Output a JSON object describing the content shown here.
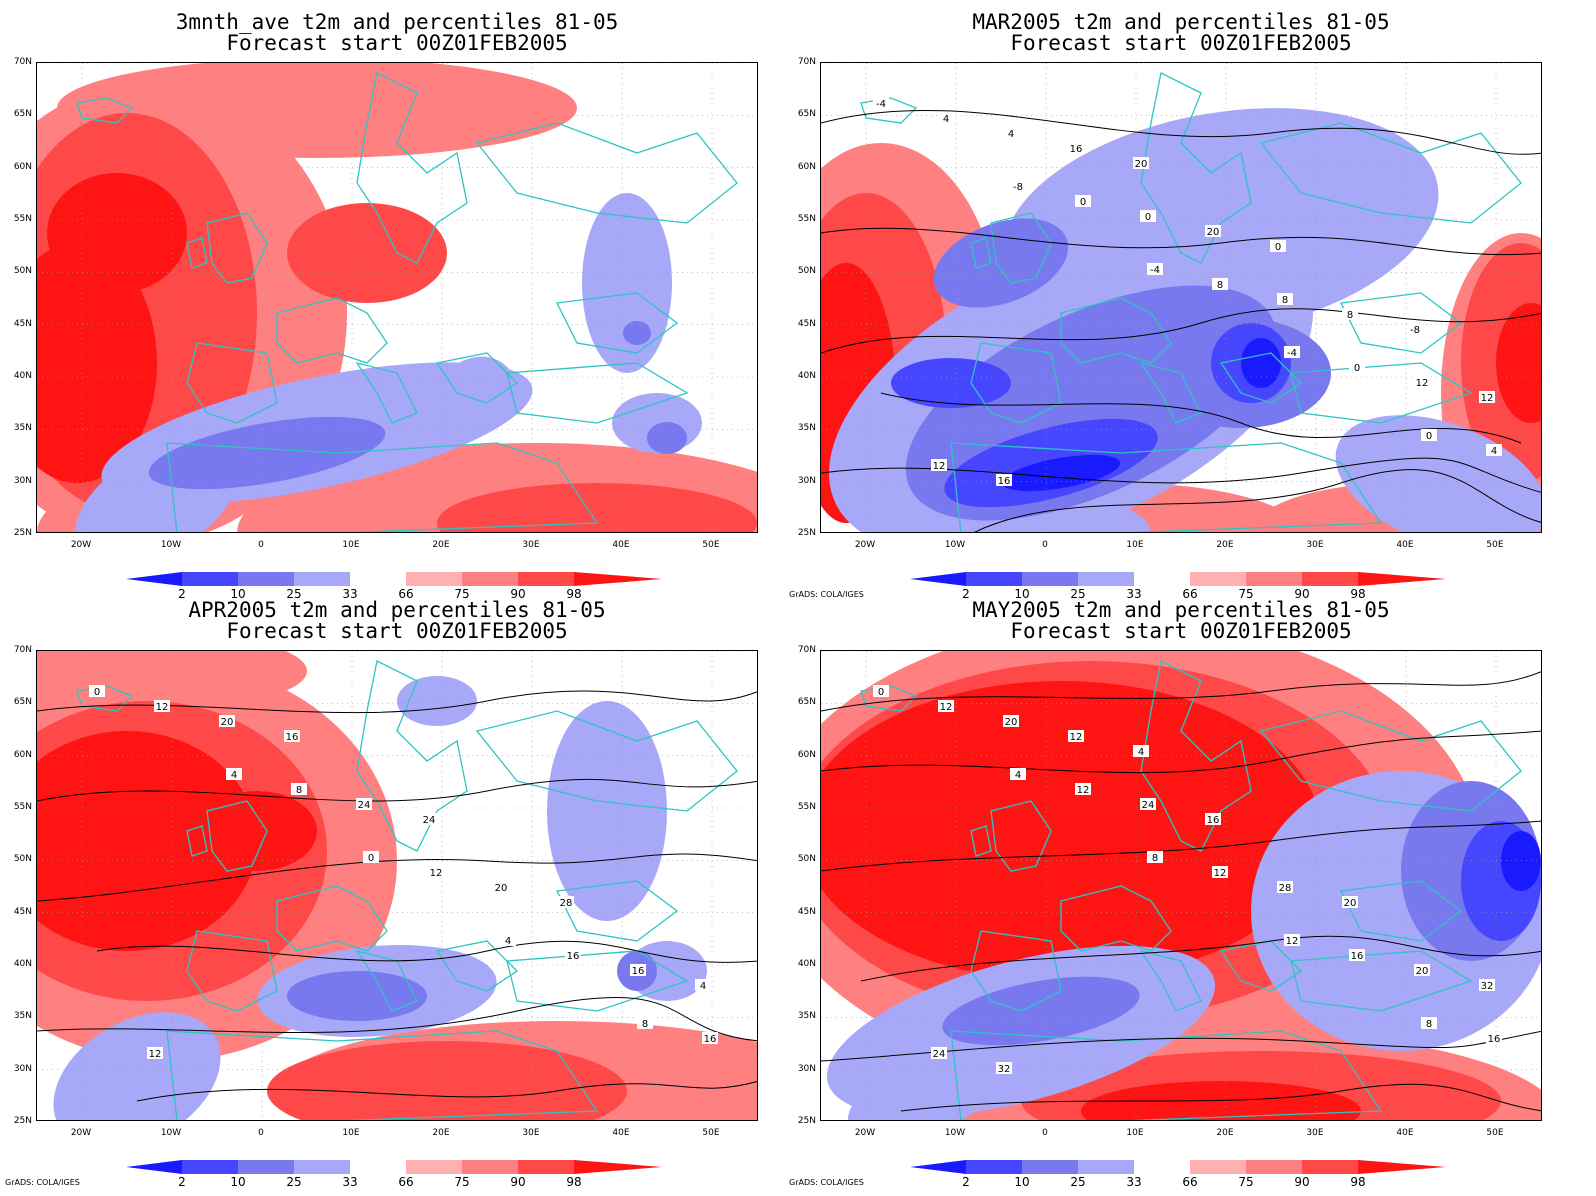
{
  "panels": [
    {
      "title": "3mnth_ave t2m and percentiles 81-05",
      "subtitle": "Forecast start 00Z01FEB2005",
      "credit": "",
      "has_contours": false,
      "contour_labels": []
    },
    {
      "title": "MAR2005 t2m and percentiles 81-05",
      "subtitle": "Forecast start 00Z01FEB2005",
      "credit": "GrADS: COLA/IGES",
      "has_contours": true,
      "contour_labels": [
        "-4",
        "-8",
        "-4",
        "-4",
        "0",
        "4",
        "0",
        "8",
        "0",
        "4",
        "4",
        "0",
        "8",
        "12",
        "12",
        "16",
        "20",
        "8",
        "12",
        "16",
        "20",
        "0",
        "-8"
      ]
    },
    {
      "title": "APR2005 t2m and percentiles 81-05",
      "subtitle": "Forecast start 00Z01FEB2005",
      "credit": "GrADS: COLA/IGES",
      "has_contours": true,
      "contour_labels": [
        "0",
        "4",
        "0",
        "4",
        "8",
        "12",
        "8",
        "12",
        "16",
        "16",
        "20",
        "24",
        "20",
        "16",
        "12",
        "16",
        "24",
        "28",
        "4"
      ]
    },
    {
      "title": "MAY2005 t2m and percentiles 81-05",
      "subtitle": "Forecast start 00Z01FEB2005",
      "credit": "GrADS: COLA/IGES",
      "has_contours": true,
      "contour_labels": [
        "0",
        "4",
        "8",
        "12",
        "8",
        "12",
        "12",
        "12",
        "16",
        "16",
        "20",
        "24",
        "28",
        "20",
        "24",
        "12",
        "16",
        "20",
        "32",
        "32",
        "4"
      ]
    }
  ],
  "axes": {
    "y_ticks": [
      "70N",
      "65N",
      "60N",
      "55N",
      "50N",
      "45N",
      "40N",
      "35N",
      "30N",
      "25N"
    ],
    "x_ticks": [
      "20W",
      "10W",
      "0",
      "10E",
      "20E",
      "30E",
      "40E",
      "50E"
    ],
    "extent": {
      "lon_min": -25,
      "lon_max": 55,
      "lat_min": 25,
      "lat_max": 70
    }
  },
  "colorbar": {
    "labels": [
      "2",
      "10",
      "25",
      "33",
      "66",
      "75",
      "90",
      "98"
    ],
    "colors": [
      "#1a1aff",
      "#4646ff",
      "#7878ef",
      "#a8a8f8",
      "#ffffff",
      "#ffb0b0",
      "#ff8080",
      "#ff4848",
      "#ff1414"
    ]
  },
  "colors": {
    "coastline": "#2ec4c4",
    "contour": "#000000",
    "grid": "#9a9a9a"
  }
}
